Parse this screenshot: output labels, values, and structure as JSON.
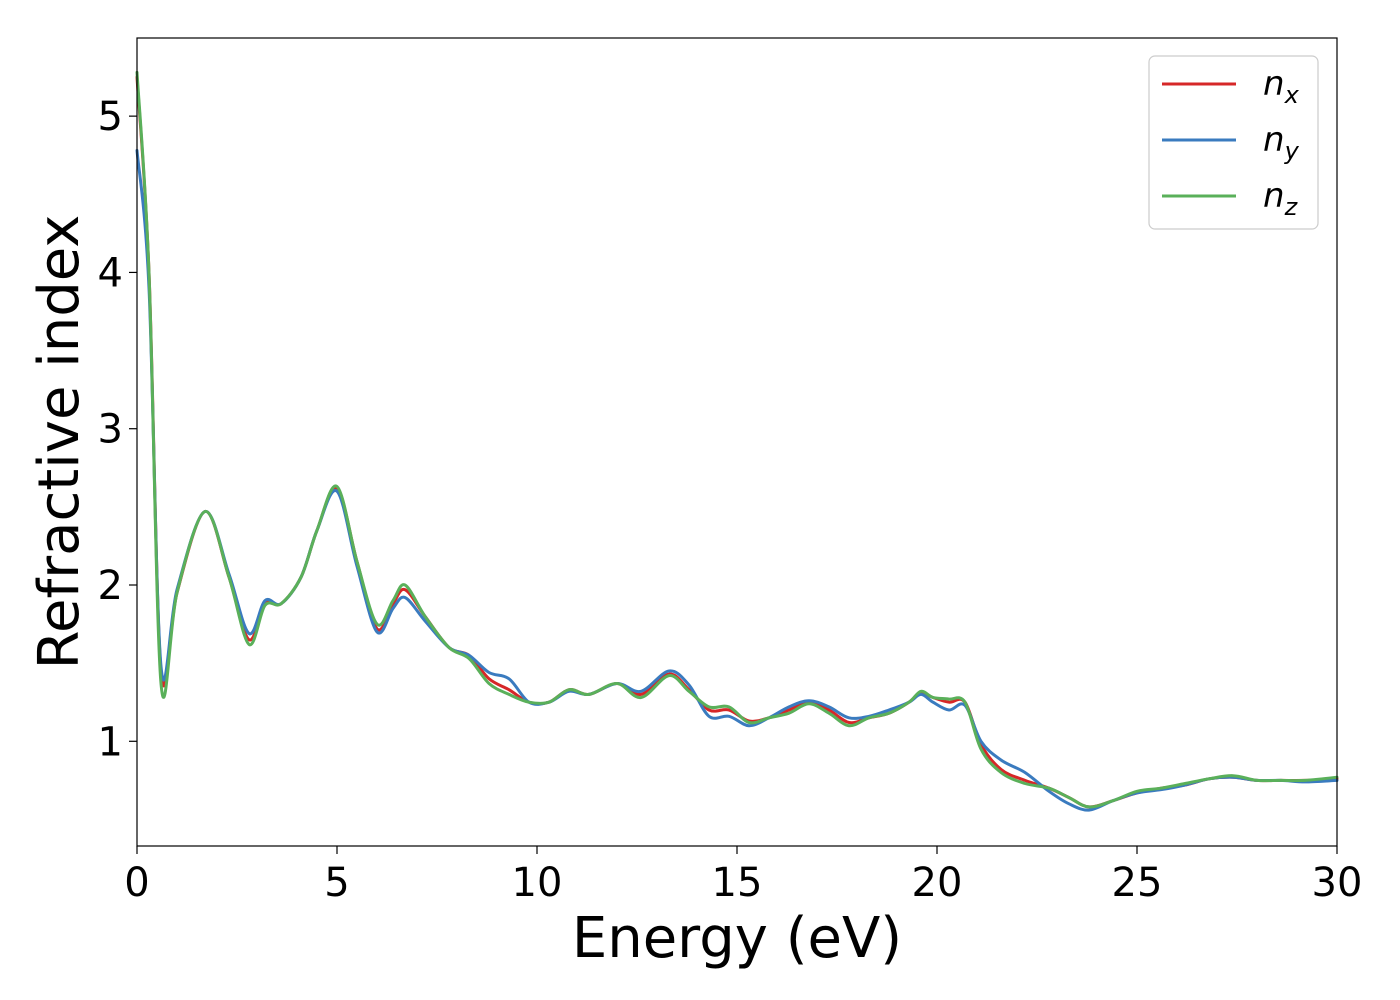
{
  "chart_data": {
    "type": "line",
    "title": "",
    "xlabel": "Energy (eV)",
    "ylabel": "Refractive index",
    "xlim": [
      0,
      30
    ],
    "ylim": [
      0.33,
      5.5
    ],
    "xticks": [
      0,
      5,
      10,
      15,
      20,
      25,
      30
    ],
    "xtick_labels": [
      "0",
      "5",
      "10",
      "15",
      "20",
      "25",
      "30"
    ],
    "yticks": [
      1,
      2,
      3,
      4,
      5
    ],
    "ytick_labels": [
      "1",
      "2",
      "3",
      "4",
      "5"
    ],
    "grid": false,
    "legend_position": "top-right",
    "x": [
      0,
      0.3,
      0.6,
      1.0,
      1.7,
      2.3,
      2.8,
      3.2,
      3.6,
      4.1,
      4.5,
      5.0,
      5.5,
      6.0,
      6.4,
      6.7,
      7.2,
      7.8,
      8.3,
      8.8,
      9.3,
      9.8,
      10.3,
      10.8,
      11.3,
      12.0,
      12.6,
      13.3,
      13.8,
      14.3,
      14.8,
      15.3,
      15.8,
      16.3,
      16.8,
      17.3,
      17.8,
      18.3,
      18.8,
      19.3,
      19.6,
      19.9,
      20.3,
      20.7,
      21.1,
      21.6,
      22.2,
      22.8,
      23.3,
      23.8,
      24.4,
      25.0,
      25.6,
      26.2,
      26.8,
      27.4,
      28.0,
      28.6,
      29.2,
      30.0
    ],
    "series": [
      {
        "name": "n",
        "subscript": "x",
        "color": "#d62728",
        "values": [
          5.25,
          4.0,
          1.45,
          1.95,
          2.47,
          2.05,
          1.65,
          1.88,
          1.88,
          2.05,
          2.35,
          2.62,
          2.15,
          1.72,
          1.88,
          1.97,
          1.8,
          1.6,
          1.55,
          1.4,
          1.33,
          1.25,
          1.25,
          1.33,
          1.3,
          1.37,
          1.3,
          1.43,
          1.33,
          1.2,
          1.2,
          1.13,
          1.15,
          1.2,
          1.25,
          1.2,
          1.12,
          1.15,
          1.18,
          1.25,
          1.31,
          1.28,
          1.25,
          1.25,
          0.98,
          0.82,
          0.75,
          0.7,
          0.64,
          0.58,
          0.62,
          0.67,
          0.7,
          0.72,
          0.76,
          0.77,
          0.75,
          0.75,
          0.75,
          0.76
        ]
      },
      {
        "name": "n",
        "subscript": "y",
        "color": "#3a7bbf",
        "values": [
          4.78,
          3.9,
          1.48,
          1.97,
          2.47,
          2.07,
          1.69,
          1.9,
          1.88,
          2.05,
          2.35,
          2.6,
          2.12,
          1.7,
          1.85,
          1.92,
          1.77,
          1.6,
          1.55,
          1.44,
          1.4,
          1.25,
          1.25,
          1.32,
          1.3,
          1.37,
          1.32,
          1.45,
          1.36,
          1.16,
          1.16,
          1.1,
          1.15,
          1.22,
          1.26,
          1.22,
          1.15,
          1.16,
          1.2,
          1.25,
          1.3,
          1.25,
          1.2,
          1.23,
          1.0,
          0.88,
          0.8,
          0.68,
          0.6,
          0.56,
          0.62,
          0.67,
          0.69,
          0.72,
          0.76,
          0.77,
          0.75,
          0.75,
          0.74,
          0.75
        ]
      },
      {
        "name": "n",
        "subscript": "z",
        "color": "#5ab05a",
        "values": [
          5.28,
          4.0,
          1.37,
          1.95,
          2.47,
          2.05,
          1.62,
          1.87,
          1.88,
          2.05,
          2.35,
          2.63,
          2.15,
          1.75,
          1.9,
          2.0,
          1.8,
          1.6,
          1.53,
          1.37,
          1.3,
          1.25,
          1.25,
          1.33,
          1.3,
          1.37,
          1.28,
          1.42,
          1.32,
          1.22,
          1.22,
          1.12,
          1.15,
          1.18,
          1.24,
          1.18,
          1.1,
          1.15,
          1.18,
          1.25,
          1.32,
          1.28,
          1.27,
          1.25,
          0.95,
          0.8,
          0.73,
          0.7,
          0.64,
          0.58,
          0.62,
          0.68,
          0.7,
          0.73,
          0.76,
          0.78,
          0.75,
          0.75,
          0.75,
          0.77
        ]
      }
    ]
  }
}
